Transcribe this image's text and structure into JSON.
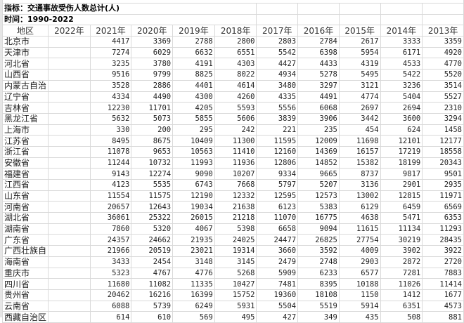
{
  "meta": {
    "indicator": "指标：交通事故受伤人数总计(人)",
    "time": "时间：1990-2022"
  },
  "header": [
    "地区",
    "2022年",
    "2021年",
    "2020年",
    "2019年",
    "2018年",
    "2017年",
    "2016年",
    "2015年",
    "2014年",
    "2013年"
  ],
  "rows": [
    {
      "region": "北京市",
      "values": [
        "",
        "4417",
        "3369",
        "2788",
        "2800",
        "2803",
        "2784",
        "2617",
        "3333",
        "3359"
      ]
    },
    {
      "region": "天津市",
      "values": [
        "",
        "7274",
        "6029",
        "6632",
        "6551",
        "5542",
        "6398",
        "5954",
        "6171",
        "4920"
      ]
    },
    {
      "region": "河北省",
      "values": [
        "",
        "3235",
        "3780",
        "4191",
        "4303",
        "4427",
        "4433",
        "4319",
        "4533",
        "4770"
      ]
    },
    {
      "region": "山西省",
      "values": [
        "",
        "9516",
        "9799",
        "8825",
        "8022",
        "4934",
        "5278",
        "5495",
        "5422",
        "5520"
      ]
    },
    {
      "region": "内蒙古自治",
      "values": [
        "",
        "3528",
        "2886",
        "4401",
        "4614",
        "3480",
        "3297",
        "3121",
        "3236",
        "3514"
      ]
    },
    {
      "region": "辽宁省",
      "values": [
        "",
        "4334",
        "4490",
        "4300",
        "4260",
        "4335",
        "4491",
        "4774",
        "5404",
        "5527"
      ]
    },
    {
      "region": "吉林省",
      "values": [
        "",
        "12230",
        "11701",
        "4205",
        "5593",
        "5556",
        "6068",
        "2697",
        "2694",
        "2310"
      ]
    },
    {
      "region": "黑龙江省",
      "values": [
        "",
        "5632",
        "5073",
        "5855",
        "5606",
        "3839",
        "3906",
        "3442",
        "3600",
        "3294"
      ]
    },
    {
      "region": "上海市",
      "values": [
        "",
        "330",
        "200",
        "295",
        "242",
        "221",
        "235",
        "454",
        "624",
        "1458"
      ]
    },
    {
      "region": "江苏省",
      "values": [
        "",
        "8495",
        "8675",
        "10409",
        "11300",
        "11595",
        "12009",
        "11698",
        "12101",
        "12177"
      ]
    },
    {
      "region": "浙江省",
      "values": [
        "",
        "11078",
        "9653",
        "10563",
        "11410",
        "12160",
        "14369",
        "16157",
        "17219",
        "18558"
      ]
    },
    {
      "region": "安徽省",
      "values": [
        "",
        "11244",
        "10732",
        "11993",
        "11936",
        "12806",
        "14852",
        "15382",
        "18199",
        "20343"
      ]
    },
    {
      "region": "福建省",
      "values": [
        "",
        "9143",
        "12274",
        "9090",
        "10207",
        "9334",
        "9665",
        "8737",
        "9817",
        "9501"
      ]
    },
    {
      "region": "江西省",
      "values": [
        "",
        "4123",
        "5535",
        "6743",
        "7668",
        "5797",
        "5207",
        "3136",
        "2901",
        "2935"
      ]
    },
    {
      "region": "山东省",
      "values": [
        "",
        "11554",
        "11575",
        "12190",
        "12332",
        "12595",
        "12573",
        "13002",
        "12815",
        "11971"
      ]
    },
    {
      "region": "河南省",
      "values": [
        "",
        "20657",
        "12643",
        "19034",
        "21638",
        "6123",
        "5383",
        "6129",
        "6459",
        "6569"
      ]
    },
    {
      "region": "湖北省",
      "values": [
        "",
        "36061",
        "25322",
        "26015",
        "21218",
        "11070",
        "16775",
        "4638",
        "5471",
        "6353"
      ]
    },
    {
      "region": "湖南省",
      "values": [
        "",
        "7860",
        "5320",
        "4067",
        "5398",
        "6658",
        "9094",
        "11615",
        "11134",
        "11293"
      ]
    },
    {
      "region": "广东省",
      "values": [
        "",
        "24357",
        "24662",
        "21935",
        "24025",
        "24477",
        "26825",
        "27754",
        "30219",
        "28435"
      ]
    },
    {
      "region": "广西壮族自",
      "values": [
        "",
        "21966",
        "20519",
        "23021",
        "19314",
        "3660",
        "3592",
        "4009",
        "3902",
        "3922"
      ]
    },
    {
      "region": "海南省",
      "values": [
        "",
        "3433",
        "2454",
        "3148",
        "3145",
        "2479",
        "2748",
        "2903",
        "2872",
        "2720"
      ]
    },
    {
      "region": "重庆市",
      "values": [
        "",
        "5323",
        "4767",
        "4776",
        "5268",
        "5909",
        "6233",
        "6577",
        "7281",
        "7883"
      ]
    },
    {
      "region": "四川省",
      "values": [
        "",
        "11680",
        "11082",
        "11335",
        "10427",
        "7481",
        "8395",
        "10188",
        "11026",
        "11414"
      ]
    },
    {
      "region": "贵州省",
      "values": [
        "",
        "20462",
        "16216",
        "16399",
        "15752",
        "19360",
        "18108",
        "1150",
        "1412",
        "1677"
      ]
    },
    {
      "region": "云南省",
      "values": [
        "",
        "6088",
        "5739",
        "6249",
        "5931",
        "5504",
        "5519",
        "5914",
        "6351",
        "4573"
      ]
    },
    {
      "region": "西藏自治区",
      "values": [
        "",
        "614",
        "610",
        "569",
        "495",
        "427",
        "349",
        "435",
        "508",
        "881"
      ]
    }
  ]
}
